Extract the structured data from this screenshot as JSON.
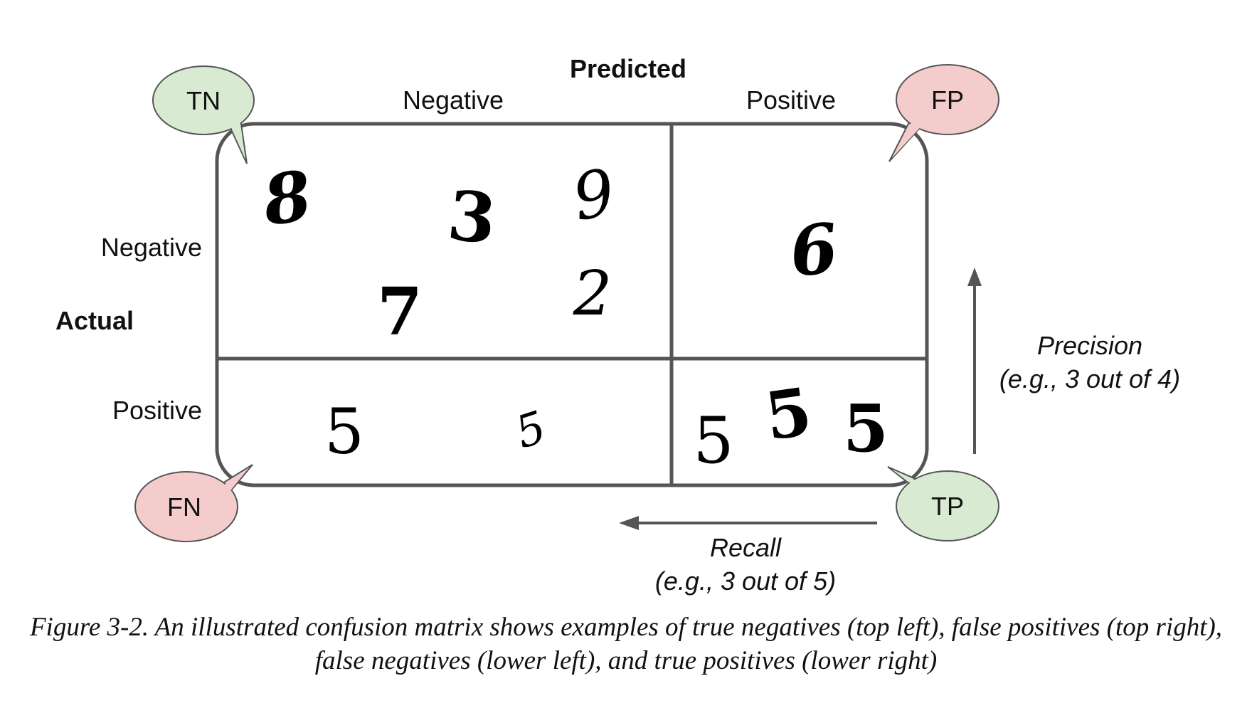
{
  "axes": {
    "predicted": "Predicted",
    "actual": "Actual",
    "col_negative": "Negative",
    "col_positive": "Positive",
    "row_negative": "Negative",
    "row_positive": "Positive"
  },
  "bubbles": {
    "tn": {
      "label": "TN",
      "color": "#d9ead3"
    },
    "fp": {
      "label": "FP",
      "color": "#f4cccc"
    },
    "fn": {
      "label": "FN",
      "color": "#f4cccc"
    },
    "tp": {
      "label": "TP",
      "color": "#d9ead3"
    }
  },
  "cells": {
    "true_negatives": [
      "8",
      "3",
      "9",
      "7",
      "2"
    ],
    "false_positives": [
      "6"
    ],
    "false_negatives": [
      "5",
      "5"
    ],
    "true_positives": [
      "5",
      "5",
      "5"
    ]
  },
  "metrics": {
    "precision_label": "Precision",
    "precision_example": "(e.g., 3 out of 4)",
    "recall_label": "Recall",
    "recall_example": "(e.g., 3 out of 5)"
  },
  "caption": "Figure 3-2. An illustrated confusion matrix shows examples of true negatives (top left), false positives (top right), false negatives (lower left), and true positives (lower right)"
}
